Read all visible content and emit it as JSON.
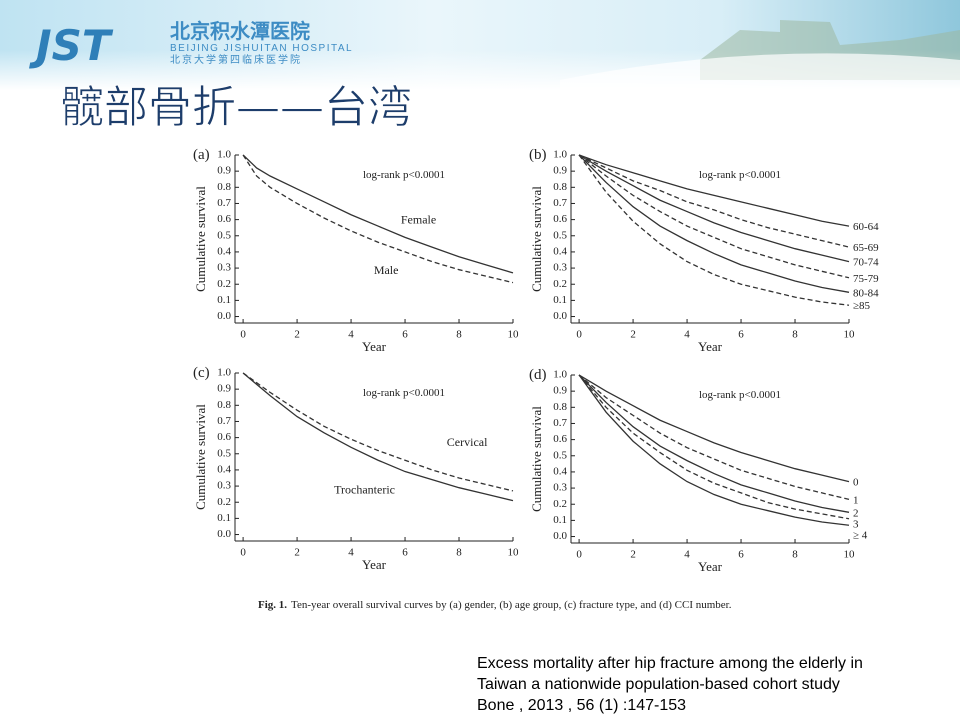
{
  "header": {
    "logo": "JST",
    "hospital_cn": "北京积水潭医院",
    "hospital_en": "BEIJING JISHUITAN HOSPITAL",
    "school_cn": "北京大学第四临床医学院"
  },
  "slide_title": "髋部骨折——台湾",
  "figure_caption": {
    "label": "Fig. 1.",
    "text": "Ten-year overall survival curves by (a) gender, (b) age group, (c) fracture type, and (d) CCI number."
  },
  "citation": {
    "lines": [
      "Excess mortality after hip fracture among the elderly in",
      "Taiwan a nationwide population-based cohort study",
      "Bone , 2013 , 56 (1) :147-153"
    ]
  },
  "chart_data": [
    {
      "type": "line",
      "panel": "(a)",
      "annotation": "log-rank p<0.0001",
      "x_label": "Year",
      "y_label": "Cumulative survival",
      "xlim": [
        -0.3,
        10
      ],
      "ylim": [
        -0.04,
        1
      ],
      "xticks": [
        0,
        2,
        4,
        6,
        8,
        10
      ],
      "yticks": [
        {
          "value": 0,
          "label": "0.0"
        },
        0.1,
        0.2,
        0.3,
        0.4,
        0.5,
        0.6,
        0.7,
        0.8,
        0.9,
        {
          "value": 1,
          "label": "1.0"
        }
      ],
      "x": [
        0,
        0.5,
        1,
        2,
        3,
        4,
        5,
        6,
        7,
        8,
        9,
        10
      ],
      "series": [
        {
          "name": "Female",
          "color": "#333333",
          "style": "solid",
          "values": [
            1,
            0.92,
            0.87,
            0.79,
            0.71,
            0.63,
            0.56,
            0.49,
            0.43,
            0.37,
            0.32,
            0.27
          ]
        },
        {
          "name": "Male",
          "color": "#333333",
          "style": "dashed",
          "values": [
            1,
            0.87,
            0.8,
            0.7,
            0.61,
            0.53,
            0.46,
            0.4,
            0.34,
            0.29,
            0.25,
            0.21
          ]
        }
      ]
    },
    {
      "type": "line",
      "panel": "(b)",
      "annotation": "log-rank p<0.0001",
      "x_label": "Year",
      "y_label": "Cumulative survival",
      "xlim": [
        -0.3,
        10
      ],
      "ylim": [
        -0.04,
        1
      ],
      "xticks": [
        0,
        2,
        4,
        6,
        8,
        10
      ],
      "yticks": [
        {
          "value": 0,
          "label": "0.0"
        },
        0.1,
        0.2,
        0.3,
        0.4,
        0.5,
        0.6,
        0.7,
        0.8,
        0.9,
        {
          "value": 1,
          "label": "1.0"
        }
      ],
      "x": [
        0,
        1,
        2,
        3,
        4,
        5,
        6,
        7,
        8,
        9,
        10
      ],
      "series": [
        {
          "name": "60-64",
          "color": "#333333",
          "style": "solid",
          "values": [
            1,
            0.94,
            0.89,
            0.84,
            0.79,
            0.75,
            0.71,
            0.67,
            0.63,
            0.59,
            0.56
          ]
        },
        {
          "name": "65-69",
          "color": "#333333",
          "style": "dashed",
          "values": [
            1,
            0.92,
            0.84,
            0.78,
            0.71,
            0.66,
            0.6,
            0.55,
            0.51,
            0.47,
            0.43
          ]
        },
        {
          "name": "70-74",
          "color": "#333333",
          "style": "solid",
          "values": [
            1,
            0.9,
            0.81,
            0.72,
            0.65,
            0.58,
            0.52,
            0.47,
            0.42,
            0.38,
            0.34
          ]
        },
        {
          "name": "75-79",
          "color": "#333333",
          "style": "dashed",
          "values": [
            1,
            0.87,
            0.75,
            0.65,
            0.56,
            0.49,
            0.42,
            0.37,
            0.32,
            0.28,
            0.24
          ]
        },
        {
          "name": "80-84",
          "color": "#333333",
          "style": "solid",
          "values": [
            1,
            0.83,
            0.68,
            0.56,
            0.47,
            0.39,
            0.32,
            0.27,
            0.22,
            0.18,
            0.15
          ]
        },
        {
          "name": "≥85",
          "color": "#333333",
          "style": "dashed",
          "values": [
            1,
            0.77,
            0.59,
            0.45,
            0.34,
            0.26,
            0.2,
            0.16,
            0.12,
            0.09,
            0.07
          ]
        }
      ]
    },
    {
      "type": "line",
      "panel": "(c)",
      "annotation": "log-rank p<0.0001",
      "x_label": "Year",
      "y_label": "Cumulative survival",
      "xlim": [
        -0.3,
        10
      ],
      "ylim": [
        -0.04,
        1
      ],
      "xticks": [
        0,
        2,
        4,
        6,
        8,
        10
      ],
      "yticks": [
        {
          "value": 0,
          "label": "0.0"
        },
        0.1,
        0.2,
        0.3,
        0.4,
        0.5,
        0.6,
        0.7,
        0.8,
        0.9,
        {
          "value": 1,
          "label": "1.0"
        }
      ],
      "x": [
        0,
        1,
        2,
        3,
        4,
        5,
        6,
        7,
        8,
        9,
        10
      ],
      "series": [
        {
          "name": "Cervical",
          "color": "#333333",
          "style": "dashed",
          "values": [
            1,
            0.88,
            0.77,
            0.67,
            0.59,
            0.52,
            0.46,
            0.4,
            0.35,
            0.31,
            0.27
          ]
        },
        {
          "name": "Trochanteric",
          "color": "#333333",
          "style": "solid",
          "values": [
            1,
            0.86,
            0.73,
            0.63,
            0.54,
            0.46,
            0.39,
            0.34,
            0.29,
            0.25,
            0.21
          ]
        }
      ]
    },
    {
      "type": "line",
      "panel": "(d)",
      "annotation": "log-rank p<0.0001",
      "x_label": "Year",
      "y_label": "Cumulative survival",
      "xlim": [
        -0.3,
        10
      ],
      "ylim": [
        -0.04,
        1
      ],
      "xticks": [
        0,
        2,
        4,
        6,
        8,
        10
      ],
      "yticks": [
        {
          "value": 0,
          "label": "0.0"
        },
        0.1,
        0.2,
        0.3,
        0.4,
        0.5,
        0.6,
        0.7,
        0.8,
        0.9,
        {
          "value": 1,
          "label": "1.0"
        }
      ],
      "x": [
        0,
        1,
        2,
        3,
        4,
        5,
        6,
        7,
        8,
        9,
        10
      ],
      "series": [
        {
          "name": "0",
          "color": "#333333",
          "style": "solid",
          "values": [
            1,
            0.9,
            0.81,
            0.72,
            0.65,
            0.58,
            0.52,
            0.47,
            0.42,
            0.38,
            0.34
          ]
        },
        {
          "name": "1",
          "color": "#333333",
          "style": "dashed",
          "values": [
            1,
            0.86,
            0.75,
            0.64,
            0.55,
            0.48,
            0.41,
            0.36,
            0.31,
            0.27,
            0.23
          ]
        },
        {
          "name": "2",
          "color": "#333333",
          "style": "solid",
          "values": [
            1,
            0.83,
            0.68,
            0.56,
            0.47,
            0.39,
            0.32,
            0.27,
            0.22,
            0.18,
            0.15
          ]
        },
        {
          "name": "3",
          "color": "#333333",
          "style": "dashed",
          "values": [
            1,
            0.8,
            0.64,
            0.52,
            0.41,
            0.33,
            0.27,
            0.21,
            0.17,
            0.14,
            0.11
          ]
        },
        {
          "name": "≥ 4",
          "color": "#333333",
          "style": "solid",
          "values": [
            1,
            0.77,
            0.59,
            0.45,
            0.34,
            0.26,
            0.2,
            0.16,
            0.12,
            0.09,
            0.07
          ]
        }
      ]
    }
  ]
}
